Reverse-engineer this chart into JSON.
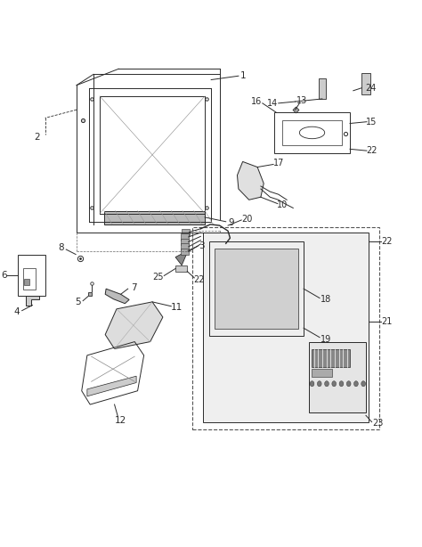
{
  "background_color": "#ffffff",
  "line_color": "#2a2a2a",
  "fig_width": 4.74,
  "fig_height": 6.14,
  "dpi": 100
}
